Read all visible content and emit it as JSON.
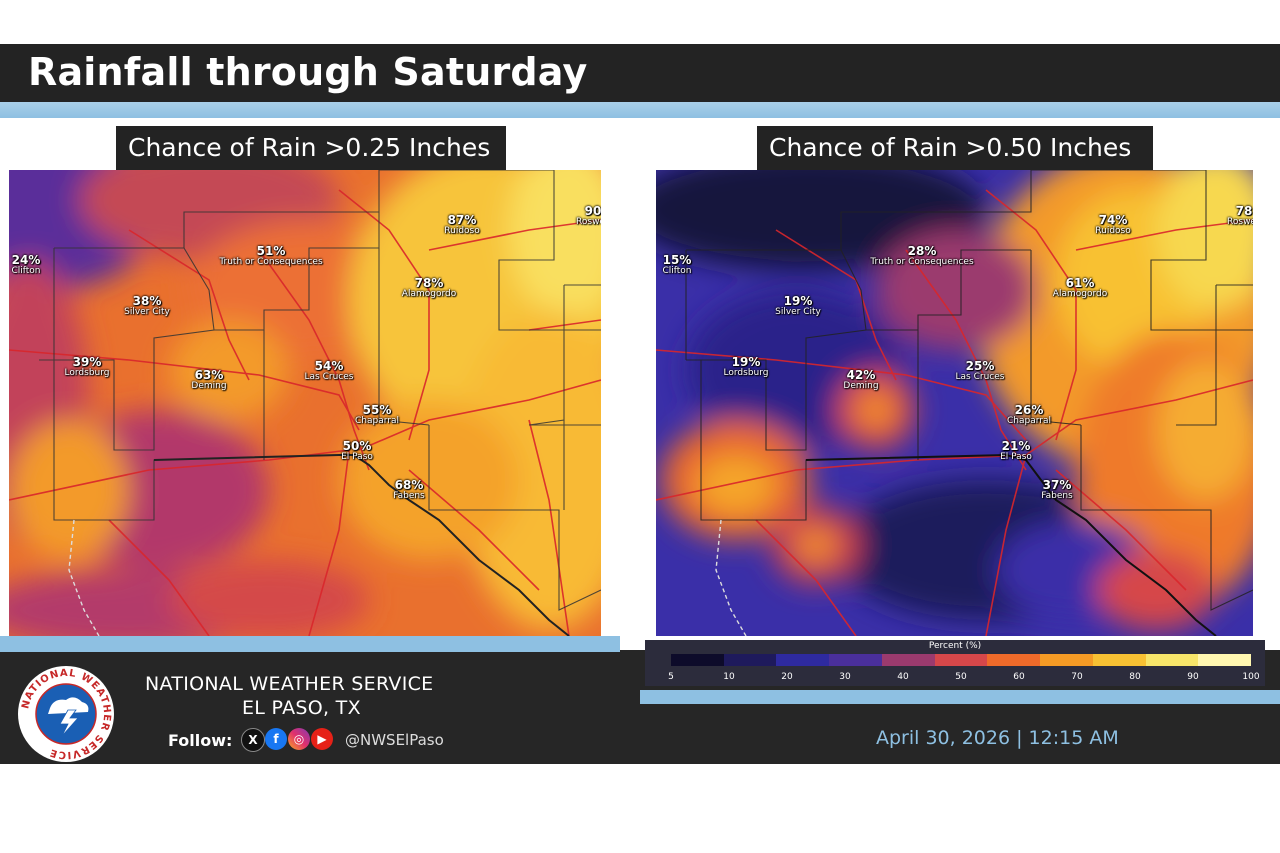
{
  "header": {
    "title": "Rainfall through Saturday"
  },
  "panels": [
    {
      "label": "Chance of Rain >0.25 Inches",
      "cities": [
        {
          "name": "Clifton",
          "pct": "24%"
        },
        {
          "name": "Truth or Consequences",
          "pct": "51%"
        },
        {
          "name": "Ruidoso",
          "pct": "87%"
        },
        {
          "name": "Roswell",
          "pct": "90"
        },
        {
          "name": "Silver City",
          "pct": "38%"
        },
        {
          "name": "Alamogordo",
          "pct": "78%"
        },
        {
          "name": "Lordsburg",
          "pct": "39%"
        },
        {
          "name": "Deming",
          "pct": "63%"
        },
        {
          "name": "Las Cruces",
          "pct": "54%"
        },
        {
          "name": "Chaparral",
          "pct": "55%"
        },
        {
          "name": "El Paso",
          "pct": "50%"
        },
        {
          "name": "Fabens",
          "pct": "68%"
        }
      ]
    },
    {
      "label": "Chance of Rain >0.50 Inches",
      "cities": [
        {
          "name": "Clifton",
          "pct": "15%"
        },
        {
          "name": "Truth or Consequences",
          "pct": "28%"
        },
        {
          "name": "Ruidoso",
          "pct": "74%"
        },
        {
          "name": "Roswell",
          "pct": "78"
        },
        {
          "name": "Silver City",
          "pct": "19%"
        },
        {
          "name": "Alamogordo",
          "pct": "61%"
        },
        {
          "name": "Lordsburg",
          "pct": "19%"
        },
        {
          "name": "Deming",
          "pct": "42%"
        },
        {
          "name": "Las Cruces",
          "pct": "25%"
        },
        {
          "name": "Chaparral",
          "pct": "26%"
        },
        {
          "name": "El Paso",
          "pct": "21%"
        },
        {
          "name": "Fabens",
          "pct": "37%"
        }
      ]
    }
  ],
  "legend": {
    "title": "Percent (%)",
    "ticks": [
      "5",
      "10",
      "20",
      "30",
      "40",
      "50",
      "60",
      "70",
      "80",
      "90",
      "100"
    ],
    "colors": [
      "#0d0b2a",
      "#1e1a5c",
      "#2e2aa0",
      "#4a2f9c",
      "#9b3a6e",
      "#d6474a",
      "#ef6a2a",
      "#f59b25",
      "#f8c133",
      "#f7e56a",
      "#fff6b0"
    ]
  },
  "footer": {
    "org": "NATIONAL WEATHER SERVICE",
    "office": "EL PASO, TX",
    "follow_label": "Follow:",
    "social_icons": [
      "x-icon",
      "facebook-icon",
      "instagram-icon",
      "youtube-icon"
    ],
    "handle": "@NWSElPaso",
    "logo_text": "NATIONAL WEATHER SERVICE",
    "date": "April 30, 2026 | 12:15 AM"
  }
}
